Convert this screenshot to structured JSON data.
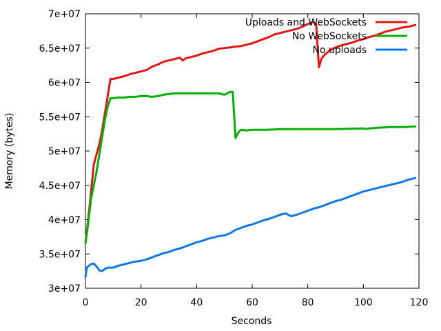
{
  "chart_data": {
    "type": "line",
    "xlabel": "Seconds",
    "ylabel": "Memory (bytes)",
    "xlim": [
      0,
      120
    ],
    "ylim": [
      30000000,
      70000000
    ],
    "x_ticks": [
      0,
      20,
      40,
      60,
      80,
      100,
      120
    ],
    "y_ticks": [
      30000000,
      35000000,
      40000000,
      45000000,
      50000000,
      55000000,
      60000000,
      65000000,
      70000000
    ],
    "x_tick_labels": [
      "0",
      "20",
      "40",
      "60",
      "80",
      "100",
      "120"
    ],
    "y_tick_labels": [
      "3e+07",
      "3.5e+07",
      "4e+07",
      "4.5e+07",
      "5e+07",
      "5.5e+07",
      "6e+07",
      "6.5e+07",
      "7e+07"
    ],
    "grid": false,
    "legend_position": "top-right",
    "series": [
      {
        "name": "Uploads and WebSockets",
        "color": "#e51414",
        "points": [
          [
            0,
            36500000
          ],
          [
            1,
            40000000
          ],
          [
            2,
            44000000
          ],
          [
            3,
            48000000
          ],
          [
            4,
            49500000
          ],
          [
            5,
            51000000
          ],
          [
            6,
            53000000
          ],
          [
            7,
            55500000
          ],
          [
            8,
            58000000
          ],
          [
            9,
            60500000
          ],
          [
            10,
            60500000
          ],
          [
            12,
            60700000
          ],
          [
            14,
            60900000
          ],
          [
            16,
            61200000
          ],
          [
            18,
            61400000
          ],
          [
            20,
            61600000
          ],
          [
            22,
            61800000
          ],
          [
            24,
            62300000
          ],
          [
            26,
            62600000
          ],
          [
            28,
            63000000
          ],
          [
            30,
            63200000
          ],
          [
            32,
            63400000
          ],
          [
            34,
            63600000
          ],
          [
            35,
            63200000
          ],
          [
            36,
            63500000
          ],
          [
            38,
            63700000
          ],
          [
            40,
            63900000
          ],
          [
            42,
            64200000
          ],
          [
            44,
            64400000
          ],
          [
            46,
            64600000
          ],
          [
            48,
            64900000
          ],
          [
            50,
            65000000
          ],
          [
            52,
            65100000
          ],
          [
            54,
            65200000
          ],
          [
            56,
            65300000
          ],
          [
            58,
            65500000
          ],
          [
            60,
            65700000
          ],
          [
            62,
            66000000
          ],
          [
            64,
            66300000
          ],
          [
            66,
            66600000
          ],
          [
            68,
            67000000
          ],
          [
            70,
            67200000
          ],
          [
            72,
            67400000
          ],
          [
            74,
            67600000
          ],
          [
            76,
            67800000
          ],
          [
            78,
            68100000
          ],
          [
            80,
            68500000
          ],
          [
            82,
            68800000
          ],
          [
            83,
            68500000
          ],
          [
            84,
            62200000
          ],
          [
            85,
            63500000
          ],
          [
            86,
            64000000
          ],
          [
            88,
            64700000
          ],
          [
            90,
            65100000
          ],
          [
            92,
            65400000
          ],
          [
            94,
            65600000
          ],
          [
            96,
            65800000
          ],
          [
            98,
            66100000
          ],
          [
            100,
            66300000
          ],
          [
            102,
            66600000
          ],
          [
            104,
            66800000
          ],
          [
            106,
            67100000
          ],
          [
            108,
            67400000
          ],
          [
            110,
            67600000
          ],
          [
            112,
            67800000
          ],
          [
            114,
            68000000
          ],
          [
            116,
            68100000
          ],
          [
            118,
            68300000
          ],
          [
            119,
            68400000
          ]
        ]
      },
      {
        "name": "No WebSockets",
        "color": "#00b000",
        "points": [
          [
            0,
            36500000
          ],
          [
            1,
            39500000
          ],
          [
            2,
            43000000
          ],
          [
            3,
            45000000
          ],
          [
            4,
            47000000
          ],
          [
            5,
            49500000
          ],
          [
            6,
            52000000
          ],
          [
            7,
            54500000
          ],
          [
            8,
            56500000
          ],
          [
            9,
            57700000
          ],
          [
            10,
            57700000
          ],
          [
            12,
            57800000
          ],
          [
            14,
            57800000
          ],
          [
            16,
            57900000
          ],
          [
            18,
            57900000
          ],
          [
            20,
            58000000
          ],
          [
            22,
            58000000
          ],
          [
            24,
            57900000
          ],
          [
            26,
            58000000
          ],
          [
            28,
            58200000
          ],
          [
            30,
            58300000
          ],
          [
            32,
            58400000
          ],
          [
            34,
            58400000
          ],
          [
            36,
            58400000
          ],
          [
            38,
            58400000
          ],
          [
            40,
            58400000
          ],
          [
            42,
            58400000
          ],
          [
            44,
            58400000
          ],
          [
            46,
            58400000
          ],
          [
            48,
            58400000
          ],
          [
            50,
            58200000
          ],
          [
            52,
            58600000
          ],
          [
            53,
            58600000
          ],
          [
            54,
            51900000
          ],
          [
            55,
            52700000
          ],
          [
            56,
            53100000
          ],
          [
            58,
            53000000
          ],
          [
            60,
            53100000
          ],
          [
            65,
            53100000
          ],
          [
            70,
            53200000
          ],
          [
            80,
            53200000
          ],
          [
            90,
            53200000
          ],
          [
            100,
            53300000
          ],
          [
            101,
            53200000
          ],
          [
            102,
            53300000
          ],
          [
            105,
            53400000
          ],
          [
            110,
            53500000
          ],
          [
            115,
            53500000
          ],
          [
            119,
            53600000
          ]
        ]
      },
      {
        "name": "No uploads",
        "color": "#0a78e6",
        "points": [
          [
            0,
            31600000
          ],
          [
            0.5,
            33000000
          ],
          [
            1,
            33200000
          ],
          [
            2,
            33500000
          ],
          [
            3,
            33600000
          ],
          [
            4,
            33200000
          ],
          [
            5,
            32600000
          ],
          [
            6,
            32500000
          ],
          [
            7,
            32800000
          ],
          [
            8,
            33000000
          ],
          [
            10,
            33000000
          ],
          [
            12,
            33300000
          ],
          [
            14,
            33500000
          ],
          [
            16,
            33700000
          ],
          [
            18,
            33900000
          ],
          [
            20,
            34000000
          ],
          [
            22,
            34200000
          ],
          [
            24,
            34500000
          ],
          [
            26,
            34800000
          ],
          [
            28,
            35100000
          ],
          [
            30,
            35300000
          ],
          [
            32,
            35600000
          ],
          [
            34,
            35800000
          ],
          [
            36,
            36100000
          ],
          [
            38,
            36400000
          ],
          [
            40,
            36700000
          ],
          [
            42,
            36900000
          ],
          [
            44,
            37200000
          ],
          [
            46,
            37400000
          ],
          [
            48,
            37600000
          ],
          [
            50,
            37700000
          ],
          [
            52,
            38000000
          ],
          [
            54,
            38500000
          ],
          [
            56,
            38800000
          ],
          [
            58,
            39100000
          ],
          [
            60,
            39300000
          ],
          [
            62,
            39600000
          ],
          [
            64,
            39900000
          ],
          [
            66,
            40100000
          ],
          [
            68,
            40400000
          ],
          [
            70,
            40700000
          ],
          [
            72,
            40900000
          ],
          [
            74,
            40500000
          ],
          [
            76,
            40700000
          ],
          [
            78,
            41000000
          ],
          [
            80,
            41300000
          ],
          [
            82,
            41600000
          ],
          [
            84,
            41800000
          ],
          [
            86,
            42100000
          ],
          [
            88,
            42400000
          ],
          [
            90,
            42700000
          ],
          [
            92,
            42900000
          ],
          [
            94,
            43200000
          ],
          [
            96,
            43500000
          ],
          [
            98,
            43800000
          ],
          [
            100,
            44100000
          ],
          [
            102,
            44300000
          ],
          [
            104,
            44500000
          ],
          [
            106,
            44700000
          ],
          [
            108,
            44900000
          ],
          [
            110,
            45100000
          ],
          [
            112,
            45300000
          ],
          [
            114,
            45500000
          ],
          [
            116,
            45800000
          ],
          [
            118,
            46000000
          ],
          [
            119,
            46100000
          ]
        ]
      }
    ]
  }
}
